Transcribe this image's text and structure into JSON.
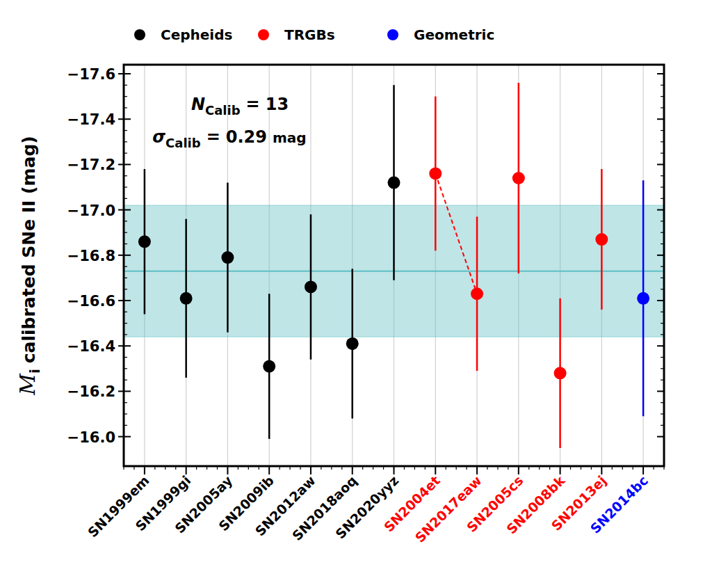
{
  "chart_data": {
    "type": "scatter",
    "categories": [
      "SN1999em",
      "SN1999gi",
      "SN2005ay",
      "SN2009ib",
      "SN2012aw",
      "SN2018aoq",
      "SN2020yyz",
      "SN2004et",
      "SN2017eaw",
      "SN2005cs",
      "SN2008bk",
      "SN2013ej",
      "SN2014bc"
    ],
    "series": [
      {
        "name": "Cepheids",
        "color": "#000000",
        "marker": "circle",
        "values": [
          -16.86,
          -16.61,
          -16.79,
          -16.31,
          -16.66,
          -16.41,
          -17.12,
          null,
          null,
          null,
          null,
          null,
          null
        ],
        "errors": [
          0.32,
          0.35,
          0.33,
          0.32,
          0.32,
          0.33,
          0.43,
          null,
          null,
          null,
          null,
          null,
          null
        ]
      },
      {
        "name": "TRGBs",
        "color": "#ff0000",
        "marker": "circle",
        "values": [
          null,
          null,
          null,
          null,
          null,
          null,
          null,
          -17.16,
          -16.63,
          -17.14,
          -16.28,
          -16.87,
          null
        ],
        "errors": [
          null,
          null,
          null,
          null,
          null,
          null,
          null,
          0.34,
          0.34,
          0.42,
          0.33,
          0.31,
          null
        ],
        "links": [
          [
            "SN2004et",
            "SN2017eaw"
          ]
        ],
        "line_style": "dashed"
      },
      {
        "name": "Geometric",
        "color": "#0000ff",
        "marker": "circle",
        "values": [
          null,
          null,
          null,
          null,
          null,
          null,
          null,
          null,
          null,
          null,
          null,
          null,
          -16.61
        ],
        "errors": [
          null,
          null,
          null,
          null,
          null,
          null,
          null,
          null,
          null,
          null,
          null,
          null,
          0.52
        ]
      }
    ],
    "mean": -16.73,
    "annotations": [
      {
        "symbol": "N",
        "subscript": "Calib",
        "relation": "=",
        "value": 13
      },
      {
        "symbol": "σ",
        "subscript": "Calib",
        "relation": "=",
        "value": 0.29,
        "unit": "mag"
      }
    ],
    "y_label": {
      "symbol": "M",
      "subscript": "i",
      "text": "calibrated SNe II (mag)"
    },
    "ylim": [
      -15.87,
      -17.64
    ],
    "yticks": [
      {
        "value": -17.6,
        "label": "−17.6"
      },
      {
        "value": -17.4,
        "label": "−17.4"
      },
      {
        "value": -17.2,
        "label": "−17.2"
      },
      {
        "value": -17.0,
        "label": "−17.0"
      },
      {
        "value": -16.8,
        "label": "−16.8"
      },
      {
        "value": -16.6,
        "label": "−16.6"
      },
      {
        "value": -16.4,
        "label": "−16.4"
      },
      {
        "value": -16.2,
        "label": "−16.2"
      },
      {
        "value": -16.0,
        "label": "−16.0"
      }
    ],
    "grid": true,
    "legend": "top"
  }
}
